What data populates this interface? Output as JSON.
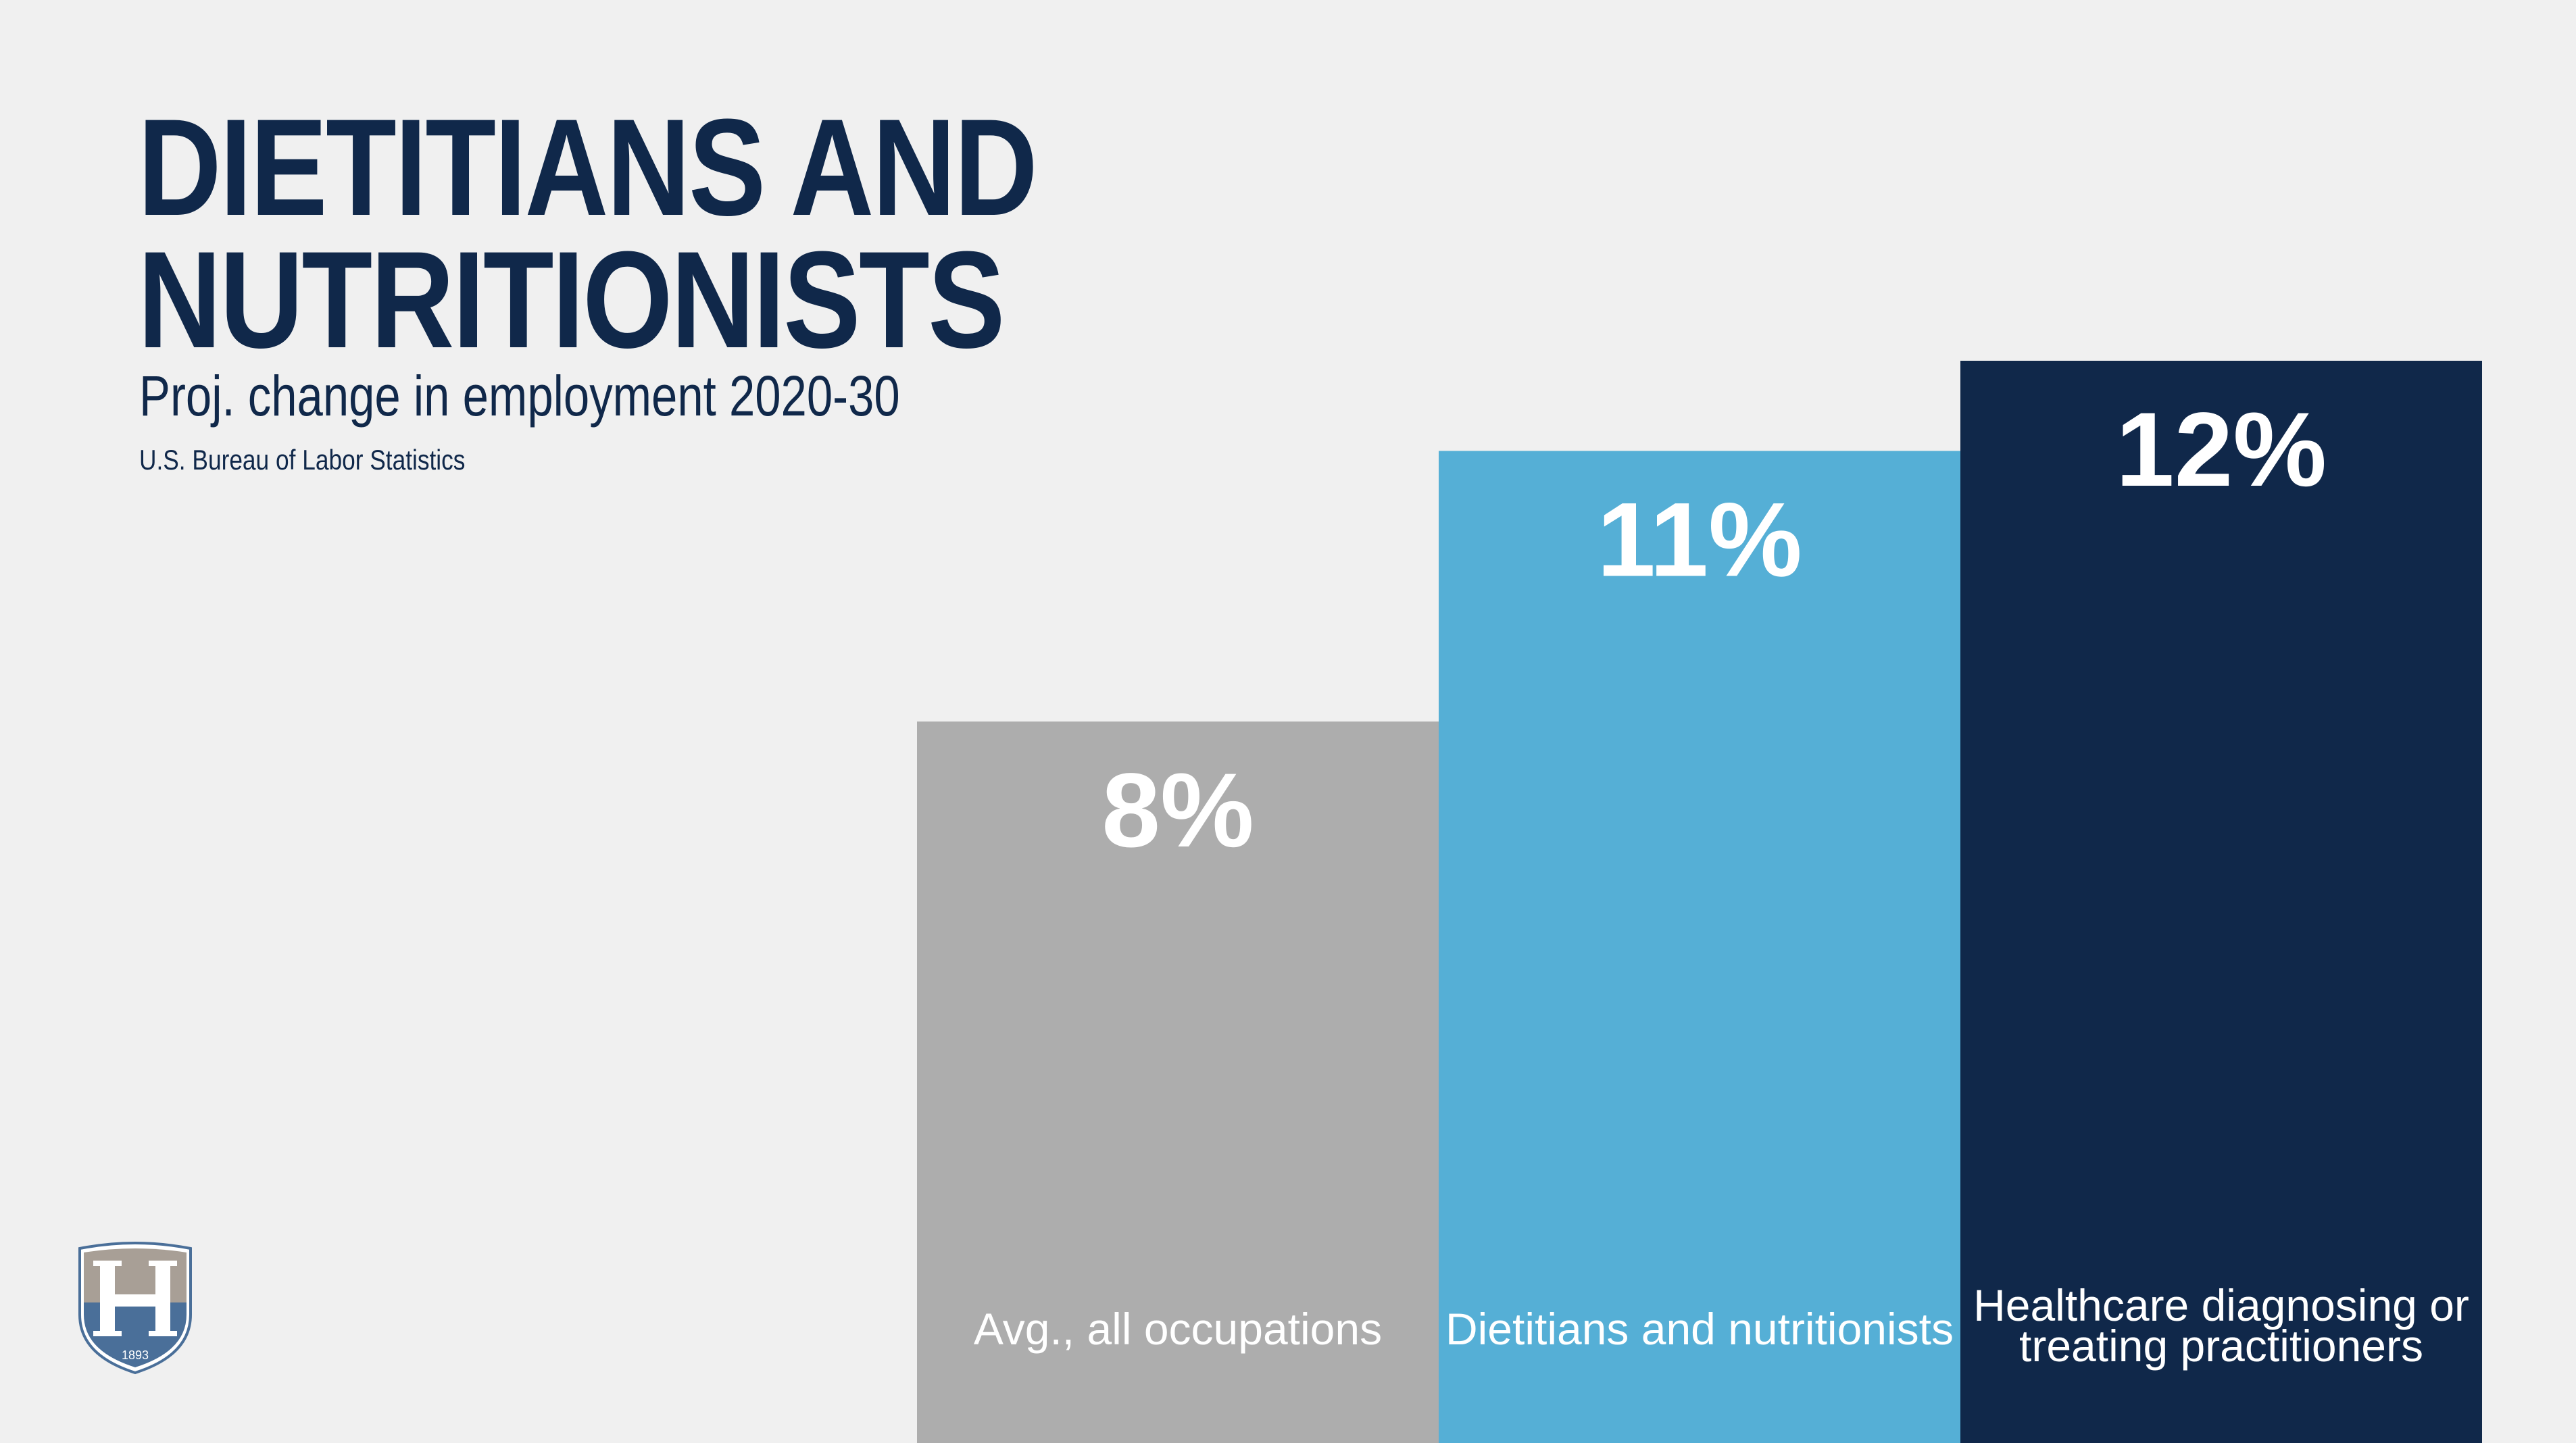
{
  "header": {
    "title_line1": "DIETITIANS AND",
    "title_line2": "NUTRITIONISTS",
    "subtitle": "Proj. change in employment 2020-30",
    "source": "U.S. Bureau of Labor Statistics"
  },
  "logo": {
    "icon": "university-shield-logo",
    "text": "1893"
  },
  "colors": {
    "background": "#f0f0f0",
    "title": "#10284a",
    "bar_avg": "#adadad",
    "bar_dietitians": "#55afd6",
    "bar_healthcare": "#10284a"
  },
  "chart_data": {
    "type": "bar",
    "title": "DIETITIANS AND NUTRITIONISTS",
    "subtitle": "Proj. change in employment 2020-30",
    "categories": [
      "Avg., all occupations",
      "Dietitians and nutritionists",
      "Healthcare diagnosing or treating practitioners"
    ],
    "category_lines": [
      [
        "Avg., all occupations"
      ],
      [
        "Dietitians and nutritionists"
      ],
      [
        "Healthcare diagnosing or",
        "treating practitioners"
      ]
    ],
    "values": [
      8,
      11,
      12
    ],
    "value_labels": [
      "8%",
      "11%",
      "12%"
    ],
    "bar_colors": [
      "#adadad",
      "#55afd6",
      "#10284a"
    ],
    "unit": "%",
    "ylim": [
      0,
      14
    ],
    "grid": false,
    "legend": "none"
  }
}
